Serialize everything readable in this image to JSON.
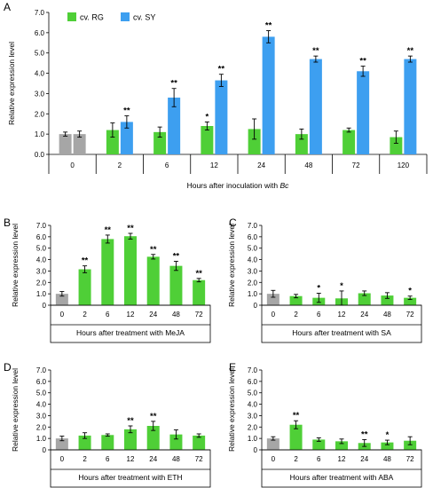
{
  "colors": {
    "gray": "#a6a6a6",
    "green": "#4fcf37",
    "blue": "#3d9ff0"
  },
  "legend": {
    "rg": "cv. RG",
    "sy": "cv. SY"
  },
  "chart_data": [
    {
      "panel": "A",
      "type": "bar",
      "categories": [
        "0",
        "2",
        "6",
        "12",
        "24",
        "48",
        "72",
        "120"
      ],
      "series": [
        {
          "name": "cv. RG",
          "values": [
            1.0,
            1.2,
            1.1,
            1.4,
            1.25,
            1.0,
            1.2,
            0.85
          ],
          "errors": [
            0.1,
            0.35,
            0.25,
            0.2,
            0.5,
            0.25,
            0.1,
            0.3
          ],
          "sig": [
            "",
            "",
            "",
            "*",
            "",
            "",
            "",
            ""
          ]
        },
        {
          "name": "cv. SY",
          "values": [
            1.0,
            1.6,
            2.8,
            3.65,
            5.8,
            4.7,
            4.1,
            4.7
          ],
          "errors": [
            0.15,
            0.3,
            0.45,
            0.3,
            0.3,
            0.15,
            0.25,
            0.15
          ],
          "sig": [
            "",
            "**",
            "**",
            "**",
            "**",
            "**",
            "**",
            "**"
          ]
        }
      ],
      "xlabel": "Hours after inoculation with ",
      "xlabel_italic": "Bc",
      "ylabel": "Relative expression level",
      "ylim": [
        0,
        7
      ],
      "yticks": [
        "0.0",
        "1.0",
        "2.0",
        "3.0",
        "4.0",
        "5.0",
        "6.0",
        "7.0"
      ]
    },
    {
      "panel": "B",
      "type": "bar",
      "categories": [
        "0",
        "2",
        "6",
        "12",
        "24",
        "48",
        "72"
      ],
      "values": [
        1.0,
        3.15,
        5.8,
        6.05,
        4.25,
        3.45,
        2.2
      ],
      "errors": [
        0.2,
        0.3,
        0.35,
        0.25,
        0.2,
        0.4,
        0.15
      ],
      "sig": [
        "",
        "**",
        "**",
        "**",
        "**",
        "**",
        "**"
      ],
      "xlabel": "Hours after treatment with MeJA",
      "ylabel": "Relative expression level",
      "ylim": [
        0,
        7
      ],
      "yticks": [
        "0",
        "1.0",
        "2.0",
        "3.0",
        "4.0",
        "5.0",
        "6.0",
        "7.0"
      ]
    },
    {
      "panel": "C",
      "type": "bar",
      "categories": [
        "0",
        "2",
        "6",
        "12",
        "24",
        "48",
        "72"
      ],
      "values": [
        1.0,
        0.8,
        0.65,
        0.6,
        1.05,
        0.85,
        0.65
      ],
      "errors": [
        0.3,
        0.15,
        0.4,
        0.65,
        0.2,
        0.25,
        0.15
      ],
      "sig": [
        "",
        "",
        "*",
        "*",
        "",
        "",
        "*"
      ],
      "xlabel": "Hours after treatment with SA",
      "ylabel": "Relative expression level",
      "ylim": [
        0,
        7
      ],
      "yticks": [
        "0",
        "1.0",
        "2.0",
        "3.0",
        "4.0",
        "5.0",
        "6.0",
        "7.0"
      ]
    },
    {
      "panel": "D",
      "type": "bar",
      "categories": [
        "0",
        "2",
        "6",
        "12",
        "24",
        "48",
        "72"
      ],
      "values": [
        1.0,
        1.25,
        1.3,
        1.8,
        2.1,
        1.35,
        1.25
      ],
      "errors": [
        0.2,
        0.25,
        0.1,
        0.3,
        0.4,
        0.4,
        0.15
      ],
      "sig": [
        "",
        "",
        "",
        "**",
        "**",
        "",
        ""
      ],
      "xlabel": "Hours after treatment with ETH",
      "ylabel": "Relative expression level",
      "ylim": [
        0,
        7
      ],
      "yticks": [
        "0",
        "1.0",
        "2.0",
        "3.0",
        "4.0",
        "5.0",
        "6.0",
        "7.0"
      ]
    },
    {
      "panel": "E",
      "type": "bar",
      "categories": [
        "0",
        "2",
        "6",
        "12",
        "24",
        "48",
        "72"
      ],
      "values": [
        1.0,
        2.2,
        0.9,
        0.75,
        0.6,
        0.65,
        0.8
      ],
      "errors": [
        0.15,
        0.35,
        0.15,
        0.2,
        0.3,
        0.2,
        0.35
      ],
      "sig": [
        "",
        "**",
        "",
        "",
        "**",
        "*",
        ""
      ],
      "xlabel": "Hours after treatment with ABA",
      "ylabel": "Relative expression level",
      "ylim": [
        0,
        7
      ],
      "yticks": [
        "0",
        "1.0",
        "2.0",
        "3.0",
        "4.0",
        "5.0",
        "6.0",
        "7.0"
      ]
    }
  ]
}
